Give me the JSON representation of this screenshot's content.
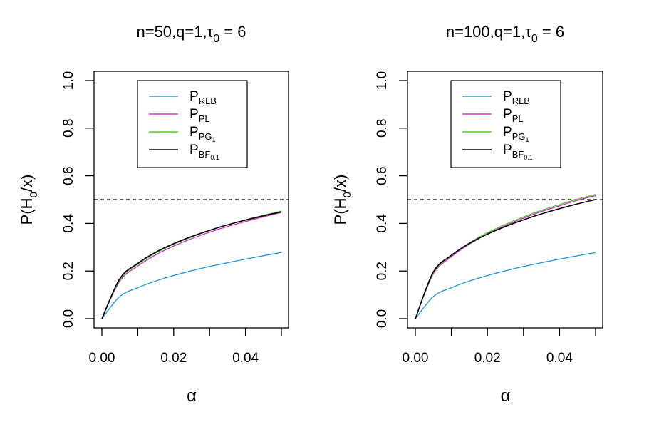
{
  "chart_data": [
    {
      "type": "line",
      "title": "n=50,q=1,τ0 = 6",
      "title_parts": {
        "prefix": "n=50,q=1,",
        "tau": "τ",
        "tau_sub": "0",
        "suffix": " = 6"
      },
      "xlabel": "α",
      "ylabel": "P(H0/x)",
      "ylabel_parts": {
        "p": "P(H",
        "sub": "0",
        "rest": "/x)"
      },
      "xlim": [
        0,
        0.05
      ],
      "ylim": [
        0,
        1
      ],
      "xticks": [
        "0.00",
        "0.02",
        "0.04"
      ],
      "yticks": [
        "0.0",
        "0.2",
        "0.4",
        "0.6",
        "0.8",
        "1.0"
      ],
      "hline": 0.5,
      "legend_position": "top-center",
      "series": [
        {
          "name": "PRLB",
          "label_main": "P",
          "label_sub": "RLB",
          "color": "#2B9BD8",
          "x": [
            0,
            0.005,
            0.01,
            0.015,
            0.02,
            0.025,
            0.03,
            0.035,
            0.04,
            0.045,
            0.05
          ],
          "values": [
            0,
            0.093,
            0.13,
            0.158,
            0.181,
            0.201,
            0.219,
            0.235,
            0.25,
            0.264,
            0.278
          ]
        },
        {
          "name": "PPL",
          "label_main": "P",
          "label_sub": "PL",
          "color": "#CC33CC",
          "x": [
            0,
            0.005,
            0.01,
            0.015,
            0.02,
            0.025,
            0.03,
            0.035,
            0.04,
            0.045,
            0.05
          ],
          "values": [
            0,
            0.158,
            0.221,
            0.268,
            0.305,
            0.336,
            0.363,
            0.387,
            0.408,
            0.428,
            0.446
          ]
        },
        {
          "name": "PPG1",
          "label_main": "P",
          "label_sub": "PG",
          "label_subsub": "1",
          "color": "#55CC33",
          "x": [
            0,
            0.005,
            0.01,
            0.015,
            0.02,
            0.025,
            0.03,
            0.035,
            0.04,
            0.045,
            0.05
          ],
          "values": [
            0,
            0.164,
            0.228,
            0.275,
            0.312,
            0.343,
            0.37,
            0.394,
            0.415,
            0.434,
            0.452
          ]
        },
        {
          "name": "PBF0.1",
          "label_main": "P",
          "label_sub": "BF",
          "label_subsub": "0.1",
          "color": "#000000",
          "x": [
            0,
            0.005,
            0.01,
            0.015,
            0.02,
            0.025,
            0.03,
            0.035,
            0.04,
            0.045,
            0.05
          ],
          "values": [
            0,
            0.168,
            0.232,
            0.279,
            0.315,
            0.345,
            0.371,
            0.394,
            0.414,
            0.432,
            0.449
          ]
        }
      ]
    },
    {
      "type": "line",
      "title": "n=100,q=1,τ0 = 6",
      "title_parts": {
        "prefix": "n=100,q=1,",
        "tau": "τ",
        "tau_sub": "0",
        "suffix": " = 6"
      },
      "xlabel": "α",
      "ylabel": "P(H0/x)",
      "ylabel_parts": {
        "p": "P(H",
        "sub": "0",
        "rest": "/x)"
      },
      "xlim": [
        0,
        0.05
      ],
      "ylim": [
        0,
        1
      ],
      "xticks": [
        "0.00",
        "0.02",
        "0.04"
      ],
      "yticks": [
        "0.0",
        "0.2",
        "0.4",
        "0.6",
        "0.8",
        "1.0"
      ],
      "hline": 0.5,
      "legend_position": "top-center",
      "series": [
        {
          "name": "PRLB",
          "label_main": "P",
          "label_sub": "RLB",
          "color": "#2B9BD8",
          "x": [
            0,
            0.005,
            0.01,
            0.015,
            0.02,
            0.025,
            0.03,
            0.035,
            0.04,
            0.045,
            0.05
          ],
          "values": [
            0,
            0.093,
            0.13,
            0.158,
            0.181,
            0.201,
            0.219,
            0.235,
            0.25,
            0.264,
            0.278
          ]
        },
        {
          "name": "PPL",
          "label_main": "P",
          "label_sub": "PL",
          "color": "#CC33CC",
          "x": [
            0,
            0.005,
            0.01,
            0.015,
            0.02,
            0.025,
            0.03,
            0.035,
            0.04,
            0.045,
            0.05
          ],
          "values": [
            0,
            0.188,
            0.26,
            0.313,
            0.356,
            0.391,
            0.422,
            0.45,
            0.474,
            0.497,
            0.517
          ]
        },
        {
          "name": "PPG1",
          "label_main": "P",
          "label_sub": "PG",
          "label_subsub": "1",
          "color": "#55CC33",
          "x": [
            0,
            0.005,
            0.01,
            0.015,
            0.02,
            0.025,
            0.03,
            0.035,
            0.04,
            0.045,
            0.05
          ],
          "values": [
            0,
            0.192,
            0.265,
            0.318,
            0.361,
            0.396,
            0.427,
            0.455,
            0.479,
            0.502,
            0.522
          ]
        },
        {
          "name": "PBF0.1",
          "label_main": "P",
          "label_sub": "BF",
          "label_subsub": "0.1",
          "color": "#000000",
          "x": [
            0,
            0.005,
            0.01,
            0.015,
            0.02,
            0.025,
            0.03,
            0.035,
            0.04,
            0.045,
            0.05
          ],
          "values": [
            0,
            0.196,
            0.266,
            0.316,
            0.355,
            0.387,
            0.415,
            0.44,
            0.462,
            0.482,
            0.5
          ]
        }
      ]
    }
  ]
}
